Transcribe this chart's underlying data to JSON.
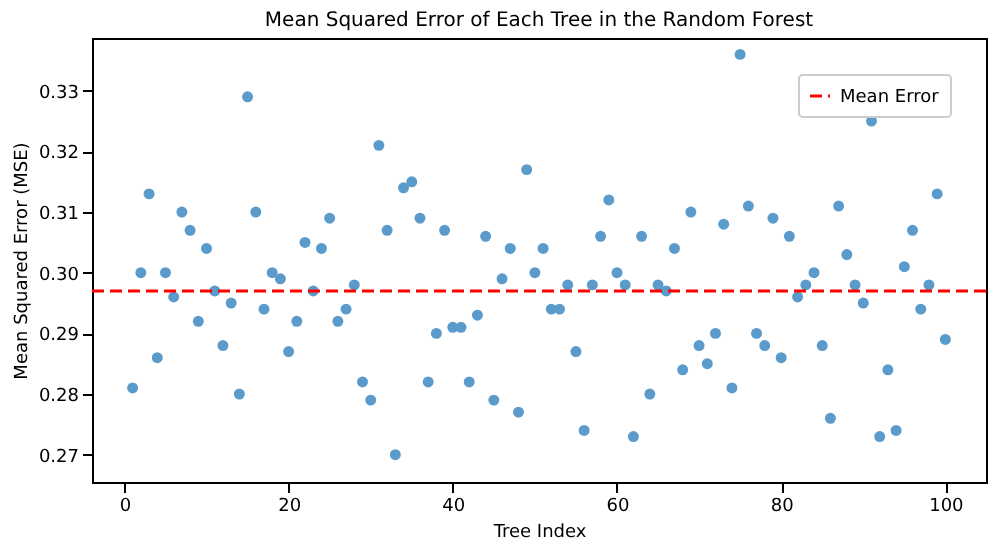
{
  "chart_data": {
    "type": "scatter",
    "title": "Mean Squared Error of Each Tree in the Random Forest",
    "xlabel": "Tree Index",
    "ylabel": "Mean Squared Error (MSE)",
    "x": [
      1,
      2,
      3,
      4,
      5,
      6,
      7,
      8,
      9,
      10,
      11,
      12,
      13,
      14,
      15,
      16,
      17,
      18,
      19,
      20,
      21,
      22,
      23,
      24,
      25,
      26,
      27,
      28,
      29,
      30,
      31,
      32,
      33,
      34,
      35,
      36,
      37,
      38,
      39,
      40,
      41,
      42,
      43,
      44,
      45,
      46,
      47,
      48,
      49,
      50,
      51,
      52,
      53,
      54,
      55,
      56,
      57,
      58,
      59,
      60,
      61,
      62,
      63,
      64,
      65,
      66,
      67,
      68,
      69,
      70,
      71,
      72,
      73,
      74,
      75,
      76,
      77,
      78,
      79,
      80,
      81,
      82,
      83,
      84,
      85,
      86,
      87,
      88,
      89,
      90,
      91,
      92,
      93,
      94,
      95,
      96,
      97,
      98,
      99,
      100
    ],
    "series": [
      {
        "color": "#5b9bcc",
        "values": [
          0.281,
          0.3,
          0.313,
          0.286,
          0.3,
          0.296,
          0.31,
          0.307,
          0.292,
          0.304,
          0.297,
          0.288,
          0.295,
          0.28,
          0.329,
          0.31,
          0.294,
          0.3,
          0.299,
          0.287,
          0.292,
          0.305,
          0.297,
          0.304,
          0.309,
          0.292,
          0.294,
          0.298,
          0.282,
          0.279,
          0.321,
          0.307,
          0.27,
          0.314,
          0.315,
          0.309,
          0.282,
          0.29,
          0.307,
          0.291,
          0.291,
          0.282,
          0.293,
          0.306,
          0.279,
          0.299,
          0.304,
          0.277,
          0.317,
          0.3,
          0.304,
          0.294,
          0.294,
          0.298,
          0.287,
          0.274,
          0.298,
          0.306,
          0.312,
          0.3,
          0.298,
          0.273,
          0.306,
          0.28,
          0.298,
          0.297,
          0.304,
          0.284,
          0.31,
          0.288,
          0.285,
          0.29,
          0.308,
          0.281,
          0.336,
          0.311,
          0.29,
          0.288,
          0.309,
          0.286,
          0.306,
          0.296,
          0.298,
          0.3,
          0.288,
          0.276,
          0.311,
          0.303,
          0.298,
          0.295,
          0.325,
          0.273,
          0.284,
          0.274,
          0.301,
          0.307,
          0.294,
          0.298,
          0.313,
          0.289
        ]
      }
    ],
    "xlim": [
      -3.95,
      104.95
    ],
    "ylim": [
      0.2655,
      0.3387
    ],
    "xticks": [
      0,
      20,
      40,
      60,
      80,
      100
    ],
    "yticks": [
      0.27,
      0.28,
      0.29,
      {
        "value": 0.3,
        "label": "0.30"
      },
      0.31,
      0.32,
      0.33
    ],
    "ref_lines": [
      {
        "axis": "y",
        "value": 0.297,
        "label": "Mean Error",
        "color": "#ff0000",
        "line_style": "dashed"
      }
    ],
    "marker": "circle",
    "grid": false,
    "legend": "top right"
  }
}
